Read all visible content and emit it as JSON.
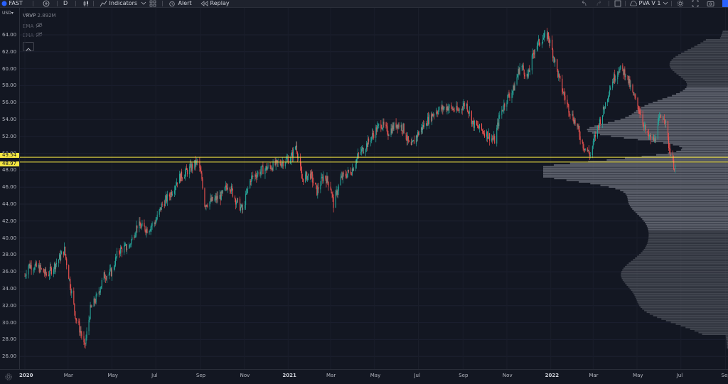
{
  "toolbar": {
    "symbol": "FAST",
    "interval": "D",
    "indicators_label": "Indicators",
    "alert_label": "Alert",
    "replay_label": "Replay",
    "layout_name": "PVA V 1"
  },
  "legend": {
    "vrvp_label": "VRVP",
    "vrvp_value": "2.892M",
    "ema1_label": "EMA",
    "ema2_label": "EMA"
  },
  "axis": {
    "currency": "USD",
    "y_ticks": [
      "64.00",
      "62.00",
      "60.00",
      "58.00",
      "56.00",
      "54.00",
      "52.00",
      "50.00",
      "48.00",
      "46.00",
      "44.00",
      "42.00",
      "40.00",
      "38.00",
      "36.00",
      "34.00",
      "32.00",
      "30.00",
      "28.00",
      "26.00"
    ],
    "x_ticks": [
      "2020",
      "Mar",
      "May",
      "Jul",
      "Sep",
      "Nov",
      "2021",
      "Mar",
      "May",
      "Jul",
      "Sep",
      "Nov",
      "2022",
      "Mar",
      "May",
      "Jul",
      "Sep"
    ]
  },
  "levels": [
    {
      "label": "49.54",
      "value": 49.54
    },
    {
      "label": "48.97",
      "value": 48.97
    }
  ],
  "colors": {
    "up": "#26a69a",
    "down": "#ef5350",
    "level": "#f5e642",
    "profile": "#6a6d78",
    "background": "#131722"
  },
  "chart_data": {
    "type": "candlestick",
    "ylim": [
      25,
      65
    ],
    "x_range": [
      "2020-01-01",
      "2022-09-15"
    ],
    "price_path": [
      [
        "2020-01-01",
        35.5
      ],
      [
        "2020-01-05",
        36.8
      ],
      [
        "2020-01-20",
        36.5
      ],
      [
        "2020-02-01",
        35.6
      ],
      [
        "2020-02-15",
        37.2
      ],
      [
        "2020-02-25",
        38.6
      ],
      [
        "2020-03-05",
        34.0
      ],
      [
        "2020-03-12",
        30.5
      ],
      [
        "2020-03-20",
        28.5
      ],
      [
        "2020-03-24",
        27.0
      ],
      [
        "2020-04-01",
        31.5
      ],
      [
        "2020-04-10",
        33.0
      ],
      [
        "2020-04-20",
        35.5
      ],
      [
        "2020-05-01",
        36.0
      ],
      [
        "2020-05-10",
        38.5
      ],
      [
        "2020-05-25",
        39.0
      ],
      [
        "2020-06-05",
        41.5
      ],
      [
        "2020-06-20",
        41.0
      ],
      [
        "2020-07-01",
        42.0
      ],
      [
        "2020-07-10",
        44.0
      ],
      [
        "2020-07-20",
        45.0
      ],
      [
        "2020-08-01",
        47.0
      ],
      [
        "2020-08-15",
        48.0
      ],
      [
        "2020-08-28",
        49.0
      ],
      [
        "2020-09-03",
        47.0
      ],
      [
        "2020-09-07",
        44.0
      ],
      [
        "2020-09-20",
        44.5
      ],
      [
        "2020-10-01",
        45.0
      ],
      [
        "2020-10-10",
        46.5
      ],
      [
        "2020-10-20",
        44.5
      ],
      [
        "2020-10-30",
        43.2
      ],
      [
        "2020-11-05",
        45.5
      ],
      [
        "2020-11-10",
        47.0
      ],
      [
        "2020-11-25",
        48.0
      ],
      [
        "2020-12-10",
        48.5
      ],
      [
        "2020-12-25",
        49.0
      ],
      [
        "2021-01-05",
        49.5
      ],
      [
        "2021-01-12",
        51.0
      ],
      [
        "2021-01-20",
        47.0
      ],
      [
        "2021-02-01",
        47.5
      ],
      [
        "2021-02-10",
        45.5
      ],
      [
        "2021-02-20",
        47.5
      ],
      [
        "2021-03-01",
        46.0
      ],
      [
        "2021-03-05",
        44.0
      ],
      [
        "2021-03-15",
        47.0
      ],
      [
        "2021-03-30",
        48.0
      ],
      [
        "2021-04-10",
        50.0
      ],
      [
        "2021-04-20",
        51.0
      ],
      [
        "2021-05-01",
        52.5
      ],
      [
        "2021-05-10",
        53.5
      ],
      [
        "2021-05-20",
        52.5
      ],
      [
        "2021-06-01",
        53.5
      ],
      [
        "2021-06-10",
        53.0
      ],
      [
        "2021-06-20",
        50.5
      ],
      [
        "2021-06-28",
        52.0
      ],
      [
        "2021-07-10",
        53.5
      ],
      [
        "2021-07-25",
        55.0
      ],
      [
        "2021-08-10",
        55.5
      ],
      [
        "2021-08-25",
        55.0
      ],
      [
        "2021-09-05",
        56.0
      ],
      [
        "2021-09-15",
        53.5
      ],
      [
        "2021-10-01",
        52.5
      ],
      [
        "2021-10-15",
        51.5
      ],
      [
        "2021-10-22",
        54.5
      ],
      [
        "2021-11-01",
        56.5
      ],
      [
        "2021-11-10",
        57.5
      ],
      [
        "2021-11-20",
        60.5
      ],
      [
        "2021-11-30",
        59.0
      ],
      [
        "2021-12-10",
        62.5
      ],
      [
        "2021-12-20",
        63.5
      ],
      [
        "2021-12-28",
        64.0
      ],
      [
        "2022-01-05",
        61.5
      ],
      [
        "2022-01-15",
        58.0
      ],
      [
        "2022-01-25",
        55.5
      ],
      [
        "2022-02-05",
        53.5
      ],
      [
        "2022-02-15",
        51.0
      ],
      [
        "2022-02-25",
        49.8
      ],
      [
        "2022-03-05",
        52.5
      ],
      [
        "2022-03-15",
        55.0
      ],
      [
        "2022-03-25",
        58.0
      ],
      [
        "2022-04-05",
        60.0
      ],
      [
        "2022-04-15",
        59.5
      ],
      [
        "2022-04-25",
        57.0
      ],
      [
        "2022-05-05",
        55.0
      ],
      [
        "2022-05-15",
        52.0
      ],
      [
        "2022-05-25",
        51.5
      ],
      [
        "2022-06-01",
        54.0
      ],
      [
        "2022-06-08",
        54.5
      ],
      [
        "2022-06-14",
        51.0
      ],
      [
        "2022-06-20",
        48.8
      ],
      [
        "2022-06-24",
        48.3
      ]
    ]
  }
}
